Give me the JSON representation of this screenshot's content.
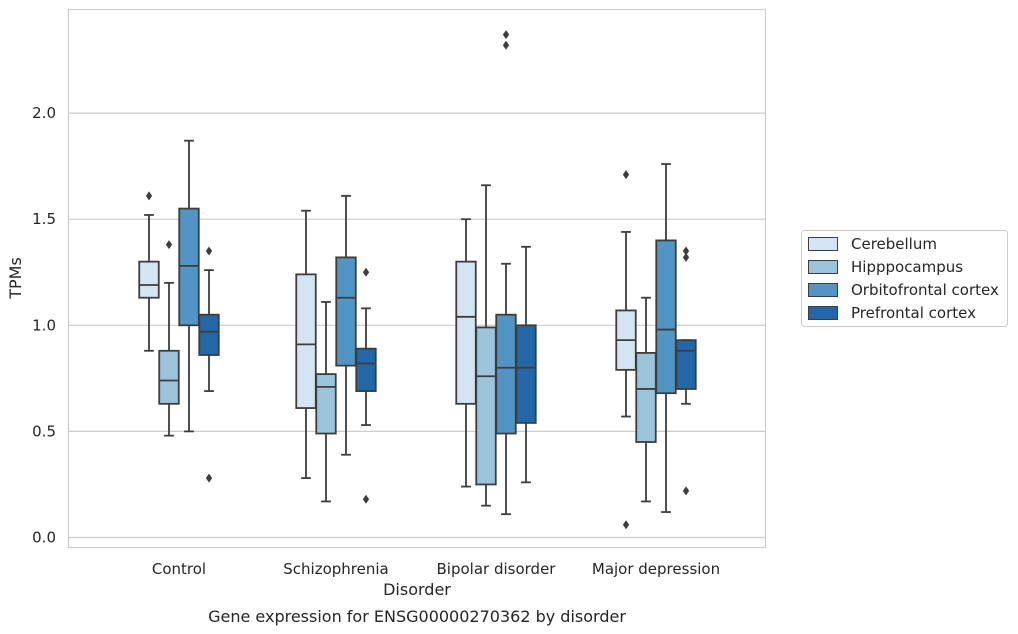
{
  "chart_data": {
    "type": "box",
    "caption": "Gene expression for ENSG00000270362 by disorder",
    "xlabel": "Disorder",
    "ylabel": "TPMs",
    "ylim": [
      -0.05,
      2.5
    ],
    "yticks": [
      0.0,
      0.5,
      1.0,
      1.5,
      2.0
    ],
    "ytick_labels": [
      "0.0",
      "0.5",
      "1.0",
      "1.5",
      "2.0"
    ],
    "categories": [
      "Control",
      "Schizophrenia",
      "Bipolar disorder",
      "Major depression"
    ],
    "grid": "horizontal",
    "legend_position": "right",
    "series": [
      {
        "name": "Cerebellum",
        "color": "#d5e4f3",
        "boxes": [
          {
            "whisker_low": 0.88,
            "q1": 1.13,
            "median": 1.19,
            "q3": 1.3,
            "whisker_high": 1.52,
            "outliers": [
              1.61
            ]
          },
          {
            "whisker_low": 0.28,
            "q1": 0.61,
            "median": 0.91,
            "q3": 1.24,
            "whisker_high": 1.54,
            "outliers": []
          },
          {
            "whisker_low": 0.24,
            "q1": 0.63,
            "median": 1.04,
            "q3": 1.3,
            "whisker_high": 1.5,
            "outliers": []
          },
          {
            "whisker_low": 0.57,
            "q1": 0.79,
            "median": 0.93,
            "q3": 1.07,
            "whisker_high": 1.44,
            "outliers": [
              1.71,
              0.06
            ]
          }
        ]
      },
      {
        "name": "Hipppocampus",
        "color": "#9cc3dd",
        "boxes": [
          {
            "whisker_low": 0.48,
            "q1": 0.63,
            "median": 0.74,
            "q3": 0.88,
            "whisker_high": 1.2,
            "outliers": [
              1.38
            ]
          },
          {
            "whisker_low": 0.17,
            "q1": 0.49,
            "median": 0.71,
            "q3": 0.77,
            "whisker_high": 1.11,
            "outliers": []
          },
          {
            "whisker_low": 0.15,
            "q1": 0.25,
            "median": 0.76,
            "q3": 0.99,
            "whisker_high": 1.66,
            "outliers": []
          },
          {
            "whisker_low": 0.17,
            "q1": 0.45,
            "median": 0.7,
            "q3": 0.87,
            "whisker_high": 1.13,
            "outliers": []
          }
        ]
      },
      {
        "name": "Orbitofrontal cortex",
        "color": "#5294c4",
        "boxes": [
          {
            "whisker_low": 0.5,
            "q1": 1.0,
            "median": 1.28,
            "q3": 1.55,
            "whisker_high": 1.87,
            "outliers": []
          },
          {
            "whisker_low": 0.39,
            "q1": 0.81,
            "median": 1.13,
            "q3": 1.32,
            "whisker_high": 1.61,
            "outliers": []
          },
          {
            "whisker_low": 0.11,
            "q1": 0.49,
            "median": 0.8,
            "q3": 1.05,
            "whisker_high": 1.29,
            "outliers": [
              2.37,
              2.32
            ]
          },
          {
            "whisker_low": 0.12,
            "q1": 0.68,
            "median": 0.98,
            "q3": 1.4,
            "whisker_high": 1.76,
            "outliers": []
          }
        ]
      },
      {
        "name": "Prefrontal cortex",
        "color": "#2367a9",
        "boxes": [
          {
            "whisker_low": 0.69,
            "q1": 0.86,
            "median": 0.97,
            "q3": 1.05,
            "whisker_high": 1.26,
            "outliers": [
              1.35,
              0.28
            ]
          },
          {
            "whisker_low": 0.53,
            "q1": 0.69,
            "median": 0.82,
            "q3": 0.89,
            "whisker_high": 1.08,
            "outliers": [
              1.25,
              0.18
            ]
          },
          {
            "whisker_low": 0.26,
            "q1": 0.54,
            "median": 0.8,
            "q3": 1.0,
            "whisker_high": 1.37,
            "outliers": []
          },
          {
            "whisker_low": 0.63,
            "q1": 0.7,
            "median": 0.88,
            "q3": 0.93,
            "whisker_high": 0.93,
            "outliers": [
              1.35,
              1.32,
              0.22
            ]
          }
        ]
      }
    ]
  },
  "style": {
    "edge_color": "#3d3d3d",
    "grid_color": "#cccccc",
    "frame_color": "#cccccc"
  }
}
